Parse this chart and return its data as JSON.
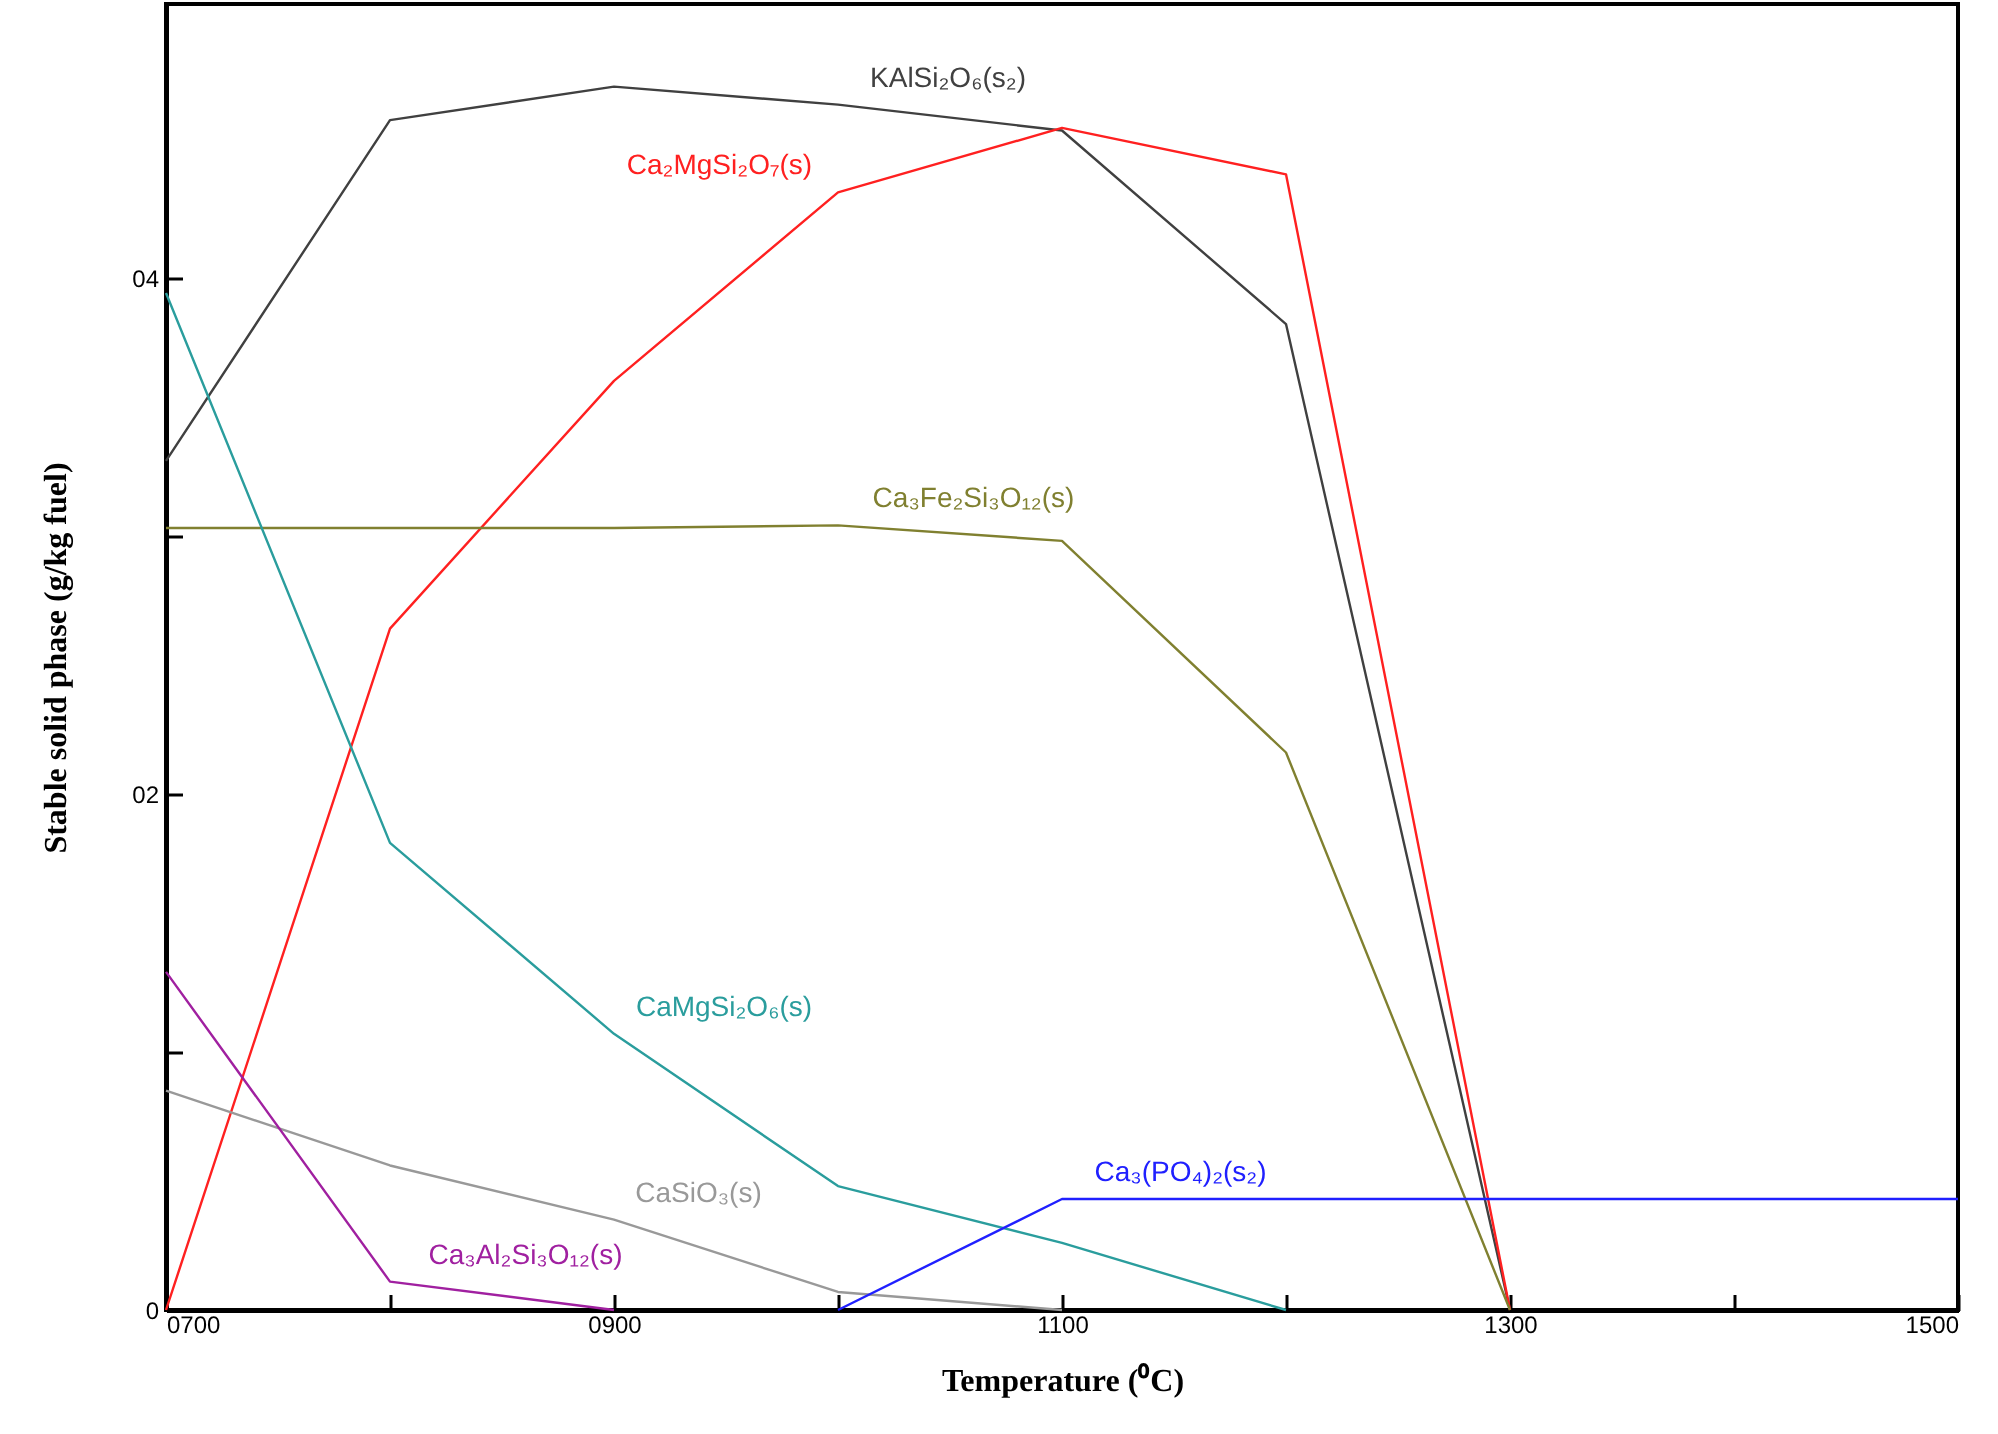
{
  "chart_data": {
    "type": "line",
    "xlabel": "Temperature (⁰C)",
    "ylabel": "Stable solid phase (g/kg fuel)",
    "xlim": [
      700,
      1500
    ],
    "ylim": [
      0,
      5.06
    ],
    "xticks": [
      {
        "value": 700,
        "label": "0700"
      },
      {
        "value": 800,
        "label": null
      },
      {
        "value": 900,
        "label": "0900"
      },
      {
        "value": 1000,
        "label": null
      },
      {
        "value": 1100,
        "label": "1100"
      },
      {
        "value": 1200,
        "label": null
      },
      {
        "value": 1300,
        "label": "1300"
      },
      {
        "value": 1400,
        "label": null
      },
      1500
    ],
    "yticks": [
      0,
      {
        "value": 1,
        "label": null
      },
      {
        "value": 2,
        "label": "02"
      },
      {
        "value": 3,
        "label": null
      },
      {
        "value": 4,
        "label": "04"
      }
    ],
    "grid": false,
    "marker": "none",
    "line_style": "solid",
    "series": [
      {
        "name": "KAlSi₂O₆(s₂)",
        "color": "#404040",
        "x": [
          700,
          800,
          900,
          1000,
          1100,
          1200,
          1300
        ],
        "values": [
          3.29,
          4.61,
          4.74,
          4.67,
          4.57,
          3.82,
          0
        ]
      },
      {
        "name": "Ca₂MgSi₂O₇(s)",
        "color": "#ff2020",
        "x": [
          700,
          800,
          900,
          1000,
          1100,
          1200,
          1300
        ],
        "values": [
          0,
          2.64,
          3.6,
          4.33,
          4.58,
          4.4,
          0
        ]
      },
      {
        "name": "Ca₃Fe₂Si₃O₁₂(s)",
        "color": "#808030",
        "x": [
          700,
          800,
          900,
          1000,
          1100,
          1200,
          1300
        ],
        "values": [
          3.03,
          3.03,
          3.03,
          3.04,
          2.98,
          2.16,
          0
        ]
      },
      {
        "name": "CaMgSi₂O₆(s)",
        "color": "#2a9d9d",
        "x": [
          700,
          800,
          900,
          1000,
          1100,
          1200
        ],
        "values": [
          3.94,
          1.81,
          1.07,
          0.48,
          0.26,
          0
        ]
      },
      {
        "name": "CaSiO₃(s)",
        "color": "#999999",
        "x": [
          700,
          800,
          900,
          1000,
          1100
        ],
        "values": [
          0.85,
          0.56,
          0.35,
          0.07,
          0
        ]
      },
      {
        "name": "Ca₃Al₂Si₃O₁₂(s)",
        "color": "#a020a0",
        "x": [
          700,
          800,
          900
        ],
        "values": [
          1.31,
          0.11,
          0
        ]
      },
      {
        "name": "Ca₃(PO₄)₂(s₂)",
        "color": "#2020ff",
        "x": [
          1000,
          1100,
          1500
        ],
        "values": [
          0,
          0.43,
          0.43
        ]
      }
    ]
  }
}
